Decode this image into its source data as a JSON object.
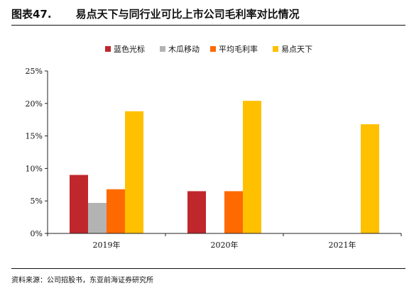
{
  "header": {
    "figure_number": "图表47.",
    "title": "易点天下与同行业可比上市公司毛利率对比情况"
  },
  "source": "资料来源：公司招股书，东亚前海证券研究所",
  "chart_data": {
    "type": "bar",
    "title": "",
    "xlabel": "",
    "ylabel": "",
    "categories": [
      "2019年",
      "2020年",
      "2021年"
    ],
    "series": [
      {
        "name": "蓝色光标",
        "color": "#c0272d",
        "values": [
          0.09,
          0.065,
          null
        ]
      },
      {
        "name": "木瓜移动",
        "color": "#b3b3b3",
        "values": [
          0.047,
          null,
          null
        ]
      },
      {
        "name": "平均毛利率",
        "color": "#ff6a00",
        "values": [
          0.068,
          0.065,
          null
        ]
      },
      {
        "name": "易点天下",
        "color": "#ffc000",
        "values": [
          0.188,
          0.204,
          0.168
        ]
      }
    ],
    "ylim": [
      0,
      0.25
    ],
    "yticks": [
      0,
      0.05,
      0.1,
      0.15,
      0.2,
      0.25
    ],
    "ytick_labels": [
      "0%",
      "5%",
      "10%",
      "15%",
      "20%",
      "25%"
    ],
    "grid": false,
    "legend": "top-center"
  }
}
